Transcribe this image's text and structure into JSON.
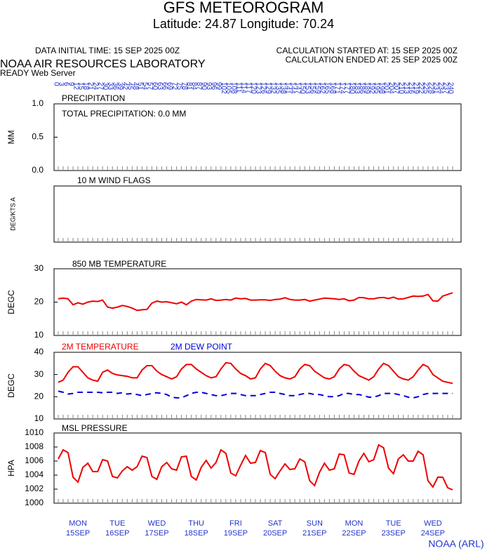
{
  "header": {
    "title": "GFS METEOROGRAM",
    "subtitle": "Latitude: 24.87 Longitude:  70.24",
    "initial_time": "DATA INITIAL TIME: 15 SEP 2025 00Z",
    "calc_started": "CALCULATION STARTED AT: 15 SEP 2025 00Z",
    "calc_ended": "CALCULATION ENDED AT: 25 SEP 2025 00Z",
    "lab": "NOAA AIR RESOURCES LABORATORY",
    "server": "READY Web Server",
    "credit": "NOAA (ARL)"
  },
  "time_axis": {
    "hours": [
      0,
      3,
      6,
      9,
      12,
      15,
      18,
      21,
      24,
      27,
      30,
      33,
      36,
      39,
      42,
      45,
      48,
      51,
      54,
      57,
      60,
      63,
      66,
      69,
      72,
      75,
      78,
      81,
      84,
      87,
      90,
      93,
      96,
      99,
      102,
      105,
      108,
      111,
      114,
      117,
      120,
      123,
      126,
      129,
      132,
      135,
      138,
      141,
      144,
      147,
      150,
      153,
      156,
      159,
      162,
      165,
      168,
      171,
      174,
      177,
      180,
      183,
      186,
      189,
      192,
      195,
      198,
      201,
      204,
      207,
      210,
      213,
      216,
      219,
      222,
      225,
      228,
      231,
      234,
      237,
      240
    ],
    "day_hours": [
      12,
      36,
      60,
      84,
      108,
      132,
      156,
      180,
      204,
      228
    ],
    "days": [
      "MON",
      "TUE",
      "WED",
      "THU",
      "FRI",
      "SAT",
      "SUN",
      "MON",
      "TUE",
      "WED"
    ],
    "dates": [
      "15SEP",
      "16SEP",
      "17SEP",
      "18SEP",
      "19SEP",
      "20SEP",
      "21SEP",
      "22SEP",
      "23SEP",
      "24SEP"
    ]
  },
  "chart_data": [
    {
      "type": "bar",
      "title": "PRECIPITATION",
      "ylabel": "MM",
      "annotation": "TOTAL PRECIPITATION:   0.0 MM",
      "ylim": [
        0,
        1
      ],
      "yticks": [
        {
          "value": 0,
          "label": "0.0"
        },
        {
          "value": 0.5,
          "label": "0.5"
        },
        {
          "value": 1,
          "label": "1.0"
        }
      ]
    },
    {
      "type": "barbs",
      "title": "10 M  WIND FLAGS",
      "ylabel": "DEG/KTS  A"
    },
    {
      "type": "line",
      "title": "850 MB  TEMPERATURE",
      "ylabel": "DEGC",
      "ylim": [
        10,
        30
      ],
      "yticks": [
        10,
        20,
        30
      ],
      "series": [
        {
          "name": null,
          "color": "#ee0000",
          "dashed": false,
          "values": [
            21,
            21.2,
            21,
            19.2,
            19.8,
            19.4,
            20,
            20.3,
            20.2,
            20.6,
            18.5,
            18.2,
            18.5,
            19,
            18.7,
            18.2,
            17.5,
            17.7,
            17.8,
            19.7,
            20.3,
            20,
            20.1,
            19.8,
            19.5,
            20,
            19.2,
            20.3,
            20.8,
            20.7,
            20.6,
            21,
            20.5,
            20.6,
            20.8,
            20.6,
            21.2,
            21,
            21.1,
            20.6,
            20.6,
            20.7,
            20.7,
            20.5,
            20.8,
            20.9,
            21.3,
            20.8,
            20.6,
            20.6,
            20.8,
            20.3,
            20.6,
            20.9,
            21.2,
            21.1,
            21,
            20.8,
            21,
            20.4,
            20.6,
            21.4,
            21.3,
            21,
            21,
            21.3,
            21.4,
            21.1,
            21.5,
            20.9,
            21,
            21.4,
            21.8,
            21.7,
            21.8,
            22.3,
            20.4,
            20.3,
            21.8,
            22.3,
            22.8
          ]
        }
      ]
    },
    {
      "type": "line",
      "title": null,
      "ylabel": "DEGC",
      "ylim": [
        10,
        40
      ],
      "yticks": [
        10,
        20,
        30,
        40
      ],
      "series": [
        {
          "name": "2M TEMPERATURE",
          "color": "#ee0000",
          "dashed": false,
          "values": [
            26.5,
            27.5,
            31,
            33.5,
            33.5,
            31,
            28.5,
            27.5,
            27,
            31,
            32,
            30.5,
            29.8,
            29.5,
            29.2,
            28.5,
            28.5,
            32,
            34,
            34,
            31.5,
            30,
            29,
            28,
            29,
            32.5,
            34.5,
            34.5,
            32.5,
            31,
            29.5,
            28.5,
            29,
            32.5,
            35.3,
            35,
            32.5,
            30.5,
            29.5,
            28,
            28.5,
            32.5,
            35,
            34,
            31.5,
            29.5,
            28.5,
            28,
            29,
            32.5,
            34.5,
            34,
            31.5,
            30,
            28.5,
            28,
            29,
            32.5,
            34.5,
            34,
            31.5,
            29.5,
            28.5,
            27.5,
            29,
            32.5,
            35,
            34,
            31.5,
            29,
            28,
            27.5,
            29,
            32,
            34.5,
            33.5,
            30,
            28.5,
            27,
            26.5,
            26
          ]
        },
        {
          "name": "2M  DEW POINT",
          "color": "#0000dd",
          "dashed": true,
          "values": [
            22.5,
            22,
            21.2,
            21.5,
            22,
            22,
            22,
            22,
            22,
            21.8,
            22,
            22,
            21.5,
            21.8,
            21.2,
            21.5,
            21,
            20.5,
            21,
            21.5,
            21.8,
            21.5,
            21,
            19.8,
            19.5,
            19.5,
            20.5,
            21.5,
            22,
            22,
            21.5,
            21,
            20.5,
            20.5,
            21,
            21.5,
            21.5,
            21,
            20.5,
            20.5,
            20.5,
            21,
            21.5,
            22,
            22,
            21.5,
            21,
            20.5,
            20.5,
            21,
            21.5,
            21.5,
            21,
            21,
            20.5,
            20,
            20,
            20.5,
            21.5,
            21.5,
            21,
            21,
            20.5,
            19.8,
            19.8,
            20.5,
            21.5,
            21.5,
            21.5,
            21,
            20.5,
            19.8,
            19.5,
            20,
            21,
            21.5,
            21.5,
            21.5,
            21.5,
            21.5,
            21.5
          ]
        }
      ]
    },
    {
      "type": "line",
      "title": "MSL PRESSURE",
      "ylabel": "HPA",
      "ylim": [
        1000,
        1010
      ],
      "yticks": [
        1000,
        1002,
        1004,
        1006,
        1008,
        1010
      ],
      "series": [
        {
          "name": null,
          "color": "#ee0000",
          "dashed": false,
          "values": [
            1006.3,
            1007.6,
            1007.2,
            1003.7,
            1003,
            1005.1,
            1005.7,
            1004.5,
            1004.5,
            1006.2,
            1006,
            1003.8,
            1003.6,
            1004.6,
            1005.2,
            1004.7,
            1005.2,
            1006.7,
            1006.5,
            1003.8,
            1003.4,
            1005.2,
            1005.8,
            1004.9,
            1004.7,
            1006.6,
            1006.7,
            1003.8,
            1003.3,
            1005.1,
            1006.1,
            1005,
            1005.8,
            1007.6,
            1007.1,
            1004.3,
            1003.9,
            1005.4,
            1006.8,
            1005.7,
            1005.8,
            1007.5,
            1007.2,
            1004.1,
            1003.5,
            1004.6,
            1005.6,
            1004.8,
            1004.9,
            1006.3,
            1005.9,
            1003.2,
            1002.5,
            1004.4,
            1005.7,
            1004.7,
            1004.9,
            1007,
            1006.9,
            1004.3,
            1004.1,
            1006,
            1007.1,
            1005.9,
            1006.2,
            1008.3,
            1007.9,
            1005,
            1004.2,
            1006.3,
            1006.9,
            1006,
            1006,
            1007.4,
            1006.9,
            1003.2,
            1002.3,
            1003.7,
            1003.7,
            1002.2,
            1001.9
          ]
        }
      ]
    }
  ]
}
